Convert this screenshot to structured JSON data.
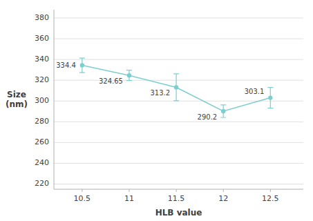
{
  "chart_data": {
    "type": "line",
    "xlabel": "HLB value",
    "ylabel": "Size\n(nm)",
    "x": [
      10.5,
      11,
      11.5,
      12,
      12.5
    ],
    "values": [
      334.4,
      324.65,
      313.2,
      290.2,
      303.1
    ],
    "yerr": [
      7,
      5,
      13,
      6,
      10
    ],
    "xlim": [
      10.2,
      12.85
    ],
    "xticks": [
      10.5,
      11,
      11.5,
      12,
      12.5
    ],
    "ylim": [
      215,
      388
    ],
    "yticks": [
      220,
      240,
      260,
      280,
      300,
      320,
      340,
      360,
      380
    ],
    "color": "#7dcfcf",
    "marker": "circle",
    "line_style": "solid",
    "grid": true,
    "data_labels": true
  }
}
